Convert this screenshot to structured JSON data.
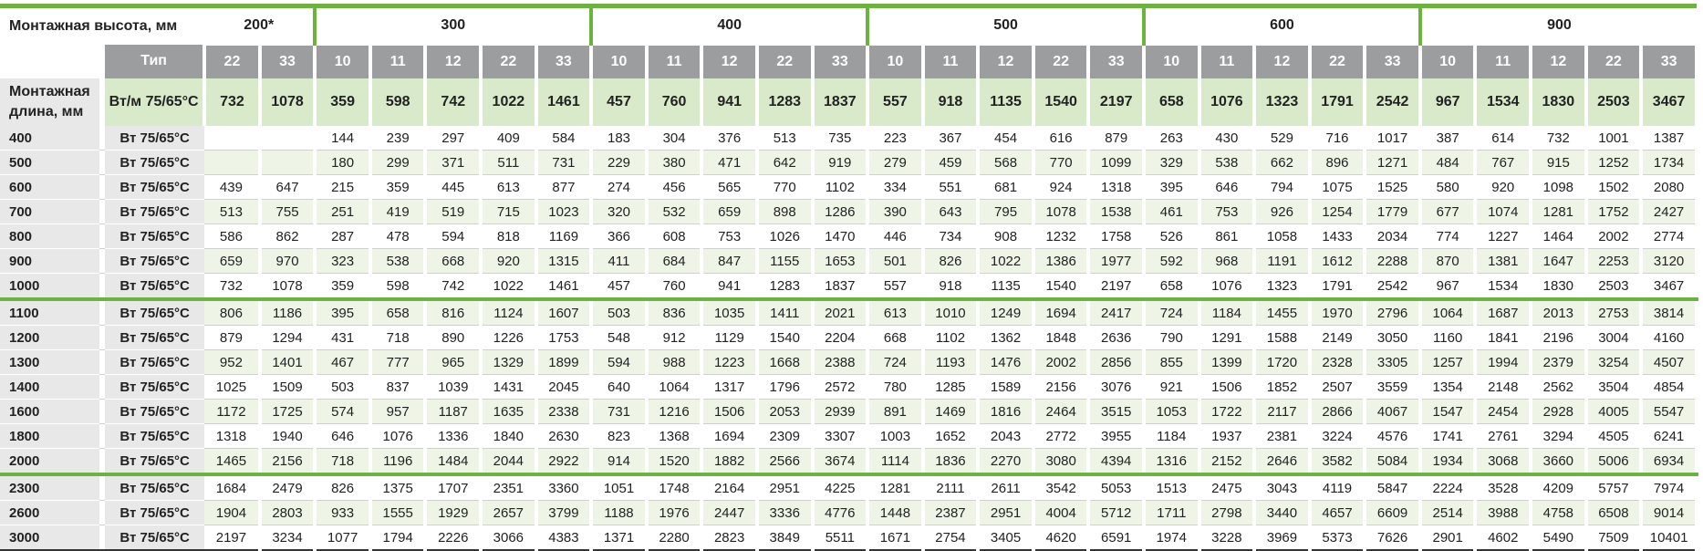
{
  "header": {
    "mount_height_label": "Монтажная высота, мм",
    "mount_length_label": "Монтажная длина, мм",
    "type_label": "Тип",
    "wm_label": "Вт/м 75/65°C",
    "row_unit_label": "Вт 75/65°C"
  },
  "colors": {
    "accent_green": "#6cb33f",
    "header_gray": "#9b9d9f",
    "light_green": "#d9eacb",
    "row_shade": "#eef5e6",
    "label_gray": "#e8e8e8"
  },
  "groups": [
    {
      "height": "200*",
      "types": [
        "22",
        "33"
      ],
      "wm": [
        "732",
        "1078"
      ]
    },
    {
      "height": "300",
      "types": [
        "10",
        "11",
        "12",
        "22",
        "33"
      ],
      "wm": [
        "359",
        "598",
        "742",
        "1022",
        "1461"
      ]
    },
    {
      "height": "400",
      "types": [
        "10",
        "11",
        "12",
        "22",
        "33"
      ],
      "wm": [
        "457",
        "760",
        "941",
        "1283",
        "1837"
      ]
    },
    {
      "height": "500",
      "types": [
        "10",
        "11",
        "12",
        "22",
        "33"
      ],
      "wm": [
        "557",
        "918",
        "1135",
        "1540",
        "2197"
      ]
    },
    {
      "height": "600",
      "types": [
        "10",
        "11",
        "12",
        "22",
        "33"
      ],
      "wm": [
        "658",
        "1076",
        "1323",
        "1791",
        "2542"
      ]
    },
    {
      "height": "900",
      "types": [
        "10",
        "11",
        "12",
        "22",
        "33"
      ],
      "wm": [
        "967",
        "1534",
        "1830",
        "2503",
        "3467"
      ]
    }
  ],
  "rows": [
    {
      "length": "400",
      "values": [
        "",
        "",
        "144",
        "239",
        "297",
        "409",
        "584",
        "183",
        "304",
        "376",
        "513",
        "735",
        "223",
        "367",
        "454",
        "616",
        "879",
        "263",
        "430",
        "529",
        "716",
        "1017",
        "387",
        "614",
        "732",
        "1001",
        "1387"
      ]
    },
    {
      "length": "500",
      "values": [
        "",
        "",
        "180",
        "299",
        "371",
        "511",
        "731",
        "229",
        "380",
        "471",
        "642",
        "919",
        "279",
        "459",
        "568",
        "770",
        "1099",
        "329",
        "538",
        "662",
        "896",
        "1271",
        "484",
        "767",
        "915",
        "1252",
        "1734"
      ]
    },
    {
      "length": "600",
      "values": [
        "439",
        "647",
        "215",
        "359",
        "445",
        "613",
        "877",
        "274",
        "456",
        "565",
        "770",
        "1102",
        "334",
        "551",
        "681",
        "924",
        "1318",
        "395",
        "646",
        "794",
        "1075",
        "1525",
        "580",
        "920",
        "1098",
        "1502",
        "2080"
      ]
    },
    {
      "length": "700",
      "values": [
        "513",
        "755",
        "251",
        "419",
        "519",
        "715",
        "1023",
        "320",
        "532",
        "659",
        "898",
        "1286",
        "390",
        "643",
        "795",
        "1078",
        "1538",
        "461",
        "753",
        "926",
        "1254",
        "1779",
        "677",
        "1074",
        "1281",
        "1752",
        "2427"
      ]
    },
    {
      "length": "800",
      "values": [
        "586",
        "862",
        "287",
        "478",
        "594",
        "818",
        "1169",
        "366",
        "608",
        "753",
        "1026",
        "1470",
        "446",
        "734",
        "908",
        "1232",
        "1758",
        "526",
        "861",
        "1058",
        "1433",
        "2034",
        "774",
        "1227",
        "1464",
        "2002",
        "2774"
      ]
    },
    {
      "length": "900",
      "values": [
        "659",
        "970",
        "323",
        "538",
        "668",
        "920",
        "1315",
        "411",
        "684",
        "847",
        "1155",
        "1653",
        "501",
        "826",
        "1022",
        "1386",
        "1977",
        "592",
        "968",
        "1191",
        "1612",
        "2288",
        "870",
        "1381",
        "1647",
        "2253",
        "3120"
      ]
    },
    {
      "length": "1000",
      "values": [
        "732",
        "1078",
        "359",
        "598",
        "742",
        "1022",
        "1461",
        "457",
        "760",
        "941",
        "1283",
        "1837",
        "557",
        "918",
        "1135",
        "1540",
        "2197",
        "658",
        "1076",
        "1323",
        "1791",
        "2542",
        "967",
        "1534",
        "1830",
        "2503",
        "3467"
      ]
    },
    {
      "length": "1100",
      "values": [
        "806",
        "1186",
        "395",
        "658",
        "816",
        "1124",
        "1607",
        "503",
        "836",
        "1035",
        "1411",
        "2021",
        "613",
        "1010",
        "1249",
        "1694",
        "2417",
        "724",
        "1184",
        "1455",
        "1970",
        "2796",
        "1064",
        "1687",
        "2013",
        "2753",
        "3814"
      ]
    },
    {
      "length": "1200",
      "values": [
        "879",
        "1294",
        "431",
        "718",
        "890",
        "1226",
        "1753",
        "548",
        "912",
        "1129",
        "1540",
        "2204",
        "668",
        "1102",
        "1362",
        "1848",
        "2636",
        "790",
        "1291",
        "1588",
        "2149",
        "3050",
        "1160",
        "1841",
        "2196",
        "3004",
        "4160"
      ]
    },
    {
      "length": "1300",
      "values": [
        "952",
        "1401",
        "467",
        "777",
        "965",
        "1329",
        "1899",
        "594",
        "988",
        "1223",
        "1668",
        "2388",
        "724",
        "1193",
        "1476",
        "2002",
        "2856",
        "855",
        "1399",
        "1720",
        "2328",
        "3305",
        "1257",
        "1994",
        "2379",
        "3254",
        "4507"
      ]
    },
    {
      "length": "1400",
      "values": [
        "1025",
        "1509",
        "503",
        "837",
        "1039",
        "1431",
        "2045",
        "640",
        "1064",
        "1317",
        "1796",
        "2572",
        "780",
        "1285",
        "1589",
        "2156",
        "3076",
        "921",
        "1506",
        "1852",
        "2507",
        "3559",
        "1354",
        "2148",
        "2562",
        "3504",
        "4854"
      ]
    },
    {
      "length": "1600",
      "values": [
        "1172",
        "1725",
        "574",
        "957",
        "1187",
        "1635",
        "2338",
        "731",
        "1216",
        "1506",
        "2053",
        "2939",
        "891",
        "1469",
        "1816",
        "2464",
        "3515",
        "1053",
        "1722",
        "2117",
        "2866",
        "4067",
        "1547",
        "2454",
        "2928",
        "4005",
        "5547"
      ]
    },
    {
      "length": "1800",
      "values": [
        "1318",
        "1940",
        "646",
        "1076",
        "1336",
        "1840",
        "2630",
        "823",
        "1368",
        "1694",
        "2309",
        "3307",
        "1003",
        "1652",
        "2043",
        "2772",
        "3955",
        "1184",
        "1937",
        "2381",
        "3224",
        "4576",
        "1741",
        "2761",
        "3294",
        "4505",
        "6241"
      ]
    },
    {
      "length": "2000",
      "values": [
        "1465",
        "2156",
        "718",
        "1196",
        "1484",
        "2044",
        "2922",
        "914",
        "1520",
        "1882",
        "2566",
        "3674",
        "1114",
        "1836",
        "2270",
        "3080",
        "4394",
        "1316",
        "2152",
        "2646",
        "3582",
        "5084",
        "1934",
        "3068",
        "3660",
        "5006",
        "6934"
      ]
    },
    {
      "length": "2300",
      "values": [
        "1684",
        "2479",
        "826",
        "1375",
        "1707",
        "2351",
        "3360",
        "1051",
        "1748",
        "2164",
        "2951",
        "4225",
        "1281",
        "2111",
        "2611",
        "3542",
        "5053",
        "1513",
        "2475",
        "3043",
        "4119",
        "5847",
        "2224",
        "3528",
        "4209",
        "5757",
        "7974"
      ]
    },
    {
      "length": "2600",
      "values": [
        "1904",
        "2803",
        "933",
        "1555",
        "1929",
        "2657",
        "3799",
        "1188",
        "1976",
        "2447",
        "3336",
        "4776",
        "1448",
        "2387",
        "2951",
        "4004",
        "5712",
        "1711",
        "2798",
        "3440",
        "4657",
        "6609",
        "2514",
        "3988",
        "4758",
        "6508",
        "9014"
      ]
    },
    {
      "length": "3000",
      "values": [
        "2197",
        "3234",
        "1077",
        "1794",
        "2226",
        "3066",
        "4383",
        "1371",
        "2280",
        "2823",
        "3849",
        "5511",
        "1671",
        "2754",
        "3405",
        "4620",
        "6591",
        "1974",
        "3228",
        "3969",
        "5373",
        "7626",
        "2901",
        "4602",
        "5490",
        "7509",
        "10401"
      ]
    }
  ]
}
